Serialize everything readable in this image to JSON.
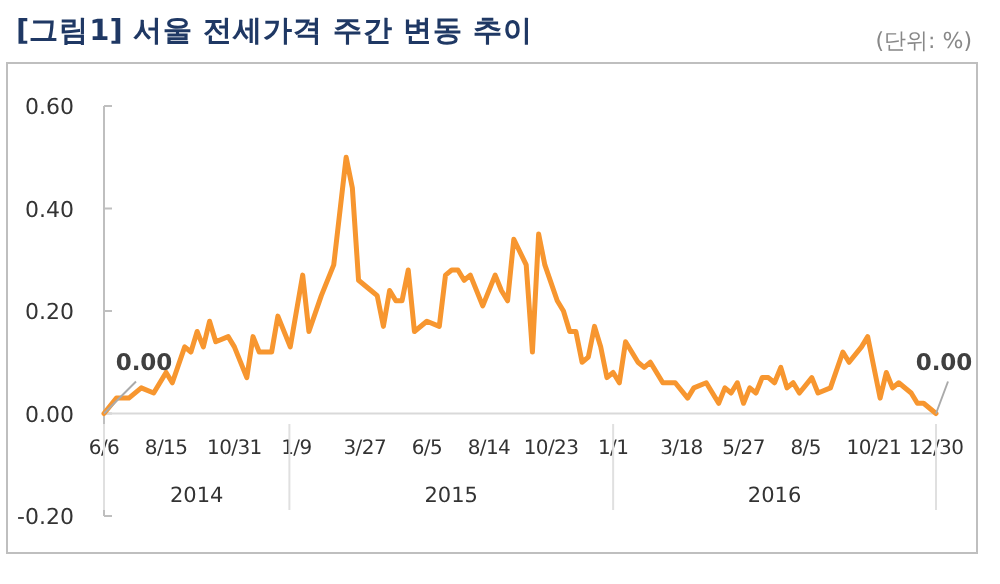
{
  "chart_data": {
    "type": "line",
    "title": "[그림1] 서울 전세가격 주간 변동 추이",
    "annotations": [
      "(단위: %)",
      {
        "text": "0.00",
        "x": "2014-06-06",
        "y": 0
      },
      {
        "text": "0.00",
        "x": "2016-12-30",
        "y": 0
      },
      "2014",
      "2015",
      "2016"
    ],
    "x": [
      "2014-06-06",
      "2014-06-20",
      "2014-07-04",
      "2014-07-18",
      "2014-08-01",
      "2014-08-15",
      "2014-08-22",
      "2014-09-05",
      "2014-09-12",
      "2014-09-19",
      "2014-09-26",
      "2014-10-03",
      "2014-10-10",
      "2014-10-24",
      "2014-10-31",
      "2014-11-14",
      "2014-11-21",
      "2014-11-28",
      "2014-12-12",
      "2014-12-19",
      "2015-01-02",
      "2015-01-16",
      "2015-01-23",
      "2015-02-06",
      "2015-02-20",
      "2015-03-06",
      "2015-03-13",
      "2015-03-20",
      "2015-04-03",
      "2015-04-10",
      "2015-04-17",
      "2015-04-24",
      "2015-05-01",
      "2015-05-08",
      "2015-05-15",
      "2015-05-22",
      "2015-06-05",
      "2015-06-19",
      "2015-06-26",
      "2015-07-03",
      "2015-07-10",
      "2015-07-17",
      "2015-07-24",
      "2015-08-07",
      "2015-08-21",
      "2015-08-28",
      "2015-09-04",
      "2015-09-11",
      "2015-09-25",
      "2015-10-02",
      "2015-10-09",
      "2015-10-16",
      "2015-10-30",
      "2015-11-06",
      "2015-11-13",
      "2015-11-20",
      "2015-11-27",
      "2015-12-04",
      "2015-12-11",
      "2015-12-18",
      "2015-12-25",
      "2016-01-01",
      "2016-01-08",
      "2016-01-15",
      "2016-01-29",
      "2016-02-05",
      "2016-02-12",
      "2016-02-26",
      "2016-03-11",
      "2016-03-25",
      "2016-04-01",
      "2016-04-15",
      "2016-04-29",
      "2016-05-06",
      "2016-05-13",
      "2016-05-20",
      "2016-05-27",
      "2016-06-03",
      "2016-06-10",
      "2016-06-17",
      "2016-06-24",
      "2016-07-01",
      "2016-07-08",
      "2016-07-15",
      "2016-07-22",
      "2016-07-29",
      "2016-08-12",
      "2016-08-19",
      "2016-09-02",
      "2016-09-16",
      "2016-09-23",
      "2016-10-07",
      "2016-10-14",
      "2016-10-28",
      "2016-11-04",
      "2016-11-11",
      "2016-11-18",
      "2016-12-02",
      "2016-12-09",
      "2016-12-16",
      "2016-12-30"
    ],
    "series": [
      {
        "color": "#f7962f",
        "values": [
          0,
          0.03,
          0.03,
          0.05,
          0.04,
          0.08,
          0.06,
          0.13,
          0.12,
          0.16,
          0.13,
          0.18,
          0.14,
          0.15,
          0.13,
          0.07,
          0.15,
          0.12,
          0.12,
          0.19,
          0.13,
          0.27,
          0.16,
          0.23,
          0.29,
          0.5,
          0.44,
          0.26,
          0.24,
          0.23,
          0.17,
          0.24,
          0.22,
          0.22,
          0.28,
          0.16,
          0.18,
          0.17,
          0.27,
          0.28,
          0.28,
          0.26,
          0.27,
          0.21,
          0.27,
          0.24,
          0.22,
          0.34,
          0.29,
          0.12,
          0.35,
          0.29,
          0.22,
          0.2,
          0.16,
          0.16,
          0.1,
          0.11,
          0.17,
          0.13,
          0.07,
          0.08,
          0.06,
          0.14,
          0.1,
          0.09,
          0.1,
          0.06,
          0.06,
          0.03,
          0.05,
          0.06,
          0.02,
          0.05,
          0.04,
          0.06,
          0.02,
          0.05,
          0.04,
          0.07,
          0.07,
          0.06,
          0.09,
          0.05,
          0.06,
          0.04,
          0.07,
          0.04,
          0.05,
          0.12,
          0.1,
          0.13,
          0.15,
          0.03,
          0.08,
          0.05,
          0.06,
          0.04,
          0.02,
          0.02,
          0
        ]
      }
    ],
    "xlim": [
      "2014-06-06",
      "2016-12-30"
    ],
    "xticks": [
      {
        "value": "2014-06-06",
        "label": "6/6"
      },
      {
        "value": "2014-08-15",
        "label": "8/15"
      },
      {
        "value": "2014-10-31",
        "label": "10/31"
      },
      {
        "value": "2015-01-09",
        "label": "1/9"
      },
      {
        "value": "2015-03-27",
        "label": "3/27"
      },
      {
        "value": "2015-06-05",
        "label": "6/5"
      },
      {
        "value": "2015-08-14",
        "label": "8/14"
      },
      {
        "value": "2015-10-23",
        "label": "10/23"
      },
      {
        "value": "2016-01-01",
        "label": "1/1"
      },
      {
        "value": "2016-03-18",
        "label": "3/18"
      },
      {
        "value": "2016-05-27",
        "label": "5/27"
      },
      {
        "value": "2016-08-05",
        "label": "8/5"
      },
      {
        "value": "2016-10-21",
        "label": "10/21"
      },
      {
        "value": "2016-12-30",
        "label": "12/30"
      }
    ],
    "ylim": [
      -0.2,
      0.6
    ],
    "yticks": [
      {
        "value": -0.2,
        "label": "-0.20"
      },
      {
        "value": 0,
        "label": "0.00"
      },
      {
        "value": 0.2,
        "label": "0.20"
      },
      {
        "value": 0.4,
        "label": "0.40"
      },
      {
        "value": 0.6,
        "label": "0.60"
      }
    ],
    "grid": false,
    "marker": "none",
    "line_style": "solid"
  }
}
